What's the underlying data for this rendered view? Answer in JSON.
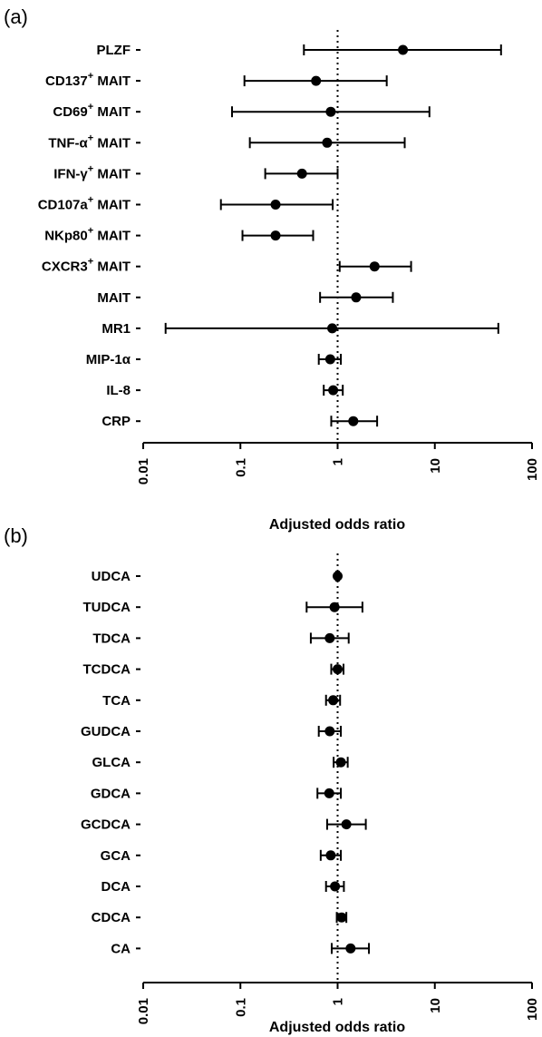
{
  "chart_data": [
    {
      "panel_label": "(a)",
      "type": "forest",
      "xlabel": "Adjusted odds ratio",
      "xscale": "log",
      "xlim": [
        0.01,
        100
      ],
      "xticks": [
        "0.01",
        "0.1",
        "1",
        "10",
        "100"
      ],
      "reference_line": 1,
      "rows": [
        {
          "label": "PLZF",
          "sup": "",
          "estimate": 4.7,
          "lower": 0.45,
          "upper": 48
        },
        {
          "label": "CD137",
          "sup": "+",
          "suffix": " MAIT",
          "estimate": 0.6,
          "lower": 0.11,
          "upper": 3.2
        },
        {
          "label": "CD69",
          "sup": "+",
          "suffix": " MAIT",
          "estimate": 0.85,
          "lower": 0.082,
          "upper": 8.8
        },
        {
          "label": "TNF-α",
          "sup": "+",
          "suffix": " MAIT",
          "estimate": 0.78,
          "lower": 0.125,
          "upper": 4.9
        },
        {
          "label": "IFN-γ",
          "sup": "+",
          "suffix": " MAIT",
          "estimate": 0.43,
          "lower": 0.18,
          "upper": 1.0
        },
        {
          "label": "CD107a",
          "sup": "+",
          "suffix": " MAIT",
          "estimate": 0.23,
          "lower": 0.063,
          "upper": 0.89
        },
        {
          "label": "NKp80",
          "sup": "+",
          "suffix": " MAIT",
          "estimate": 0.23,
          "lower": 0.105,
          "upper": 0.56
        },
        {
          "label": "CXCR3",
          "sup": "+",
          "suffix": " MAIT",
          "estimate": 2.4,
          "lower": 1.05,
          "upper": 5.7
        },
        {
          "label": "MAIT",
          "sup": "",
          "estimate": 1.55,
          "lower": 0.66,
          "upper": 3.7
        },
        {
          "label": "MR1",
          "sup": "",
          "estimate": 0.88,
          "lower": 0.017,
          "upper": 45
        },
        {
          "label": "MIP-1α",
          "sup": "",
          "estimate": 0.84,
          "lower": 0.64,
          "upper": 1.08
        },
        {
          "label": "IL-8",
          "sup": "",
          "estimate": 0.9,
          "lower": 0.72,
          "upper": 1.13
        },
        {
          "label": "CRP",
          "sup": "",
          "estimate": 1.45,
          "lower": 0.86,
          "upper": 2.55
        }
      ]
    },
    {
      "panel_label": "(b)",
      "type": "forest",
      "xlabel": "Adjusted odds ratio",
      "xscale": "log",
      "xlim": [
        0.01,
        100
      ],
      "xticks": [
        "0.01",
        "0.1",
        "1",
        "10",
        "100"
      ],
      "reference_line": 1,
      "rows": [
        {
          "label": "UDCA",
          "sup": "",
          "estimate": 1.0,
          "lower": 0.97,
          "upper": 1.03
        },
        {
          "label": "TUDCA",
          "sup": "",
          "estimate": 0.93,
          "lower": 0.48,
          "upper": 1.8
        },
        {
          "label": "TDCA",
          "sup": "",
          "estimate": 0.83,
          "lower": 0.53,
          "upper": 1.3
        },
        {
          "label": "TCDCA",
          "sup": "",
          "estimate": 1.0,
          "lower": 0.86,
          "upper": 1.15
        },
        {
          "label": "TCA",
          "sup": "",
          "estimate": 0.9,
          "lower": 0.76,
          "upper": 1.06
        },
        {
          "label": "GUDCA",
          "sup": "",
          "estimate": 0.83,
          "lower": 0.64,
          "upper": 1.08
        },
        {
          "label": "GLCA",
          "sup": "",
          "estimate": 1.08,
          "lower": 0.91,
          "upper": 1.27
        },
        {
          "label": "GDCA",
          "sup": "",
          "estimate": 0.82,
          "lower": 0.62,
          "upper": 1.08
        },
        {
          "label": "GCDCA",
          "sup": "",
          "estimate": 1.23,
          "lower": 0.78,
          "upper": 1.95
        },
        {
          "label": "GCA",
          "sup": "",
          "estimate": 0.85,
          "lower": 0.67,
          "upper": 1.08
        },
        {
          "label": "DCA",
          "sup": "",
          "estimate": 0.94,
          "lower": 0.76,
          "upper": 1.16
        },
        {
          "label": "CDCA",
          "sup": "",
          "estimate": 1.1,
          "lower": 0.98,
          "upper": 1.23
        },
        {
          "label": "CA",
          "sup": "",
          "estimate": 1.36,
          "lower": 0.87,
          "upper": 2.1
        }
      ]
    }
  ]
}
